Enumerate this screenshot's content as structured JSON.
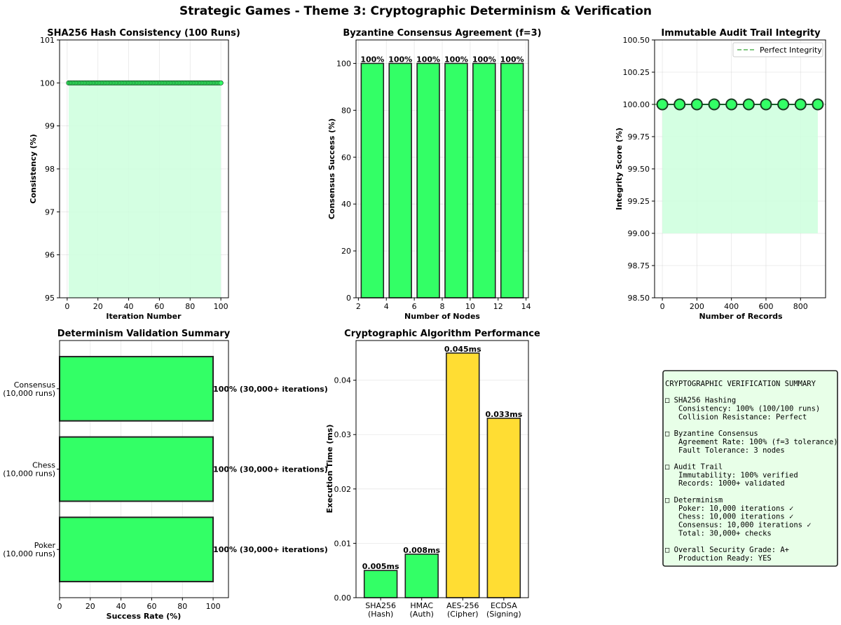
{
  "suptitle": "Strategic Games - Theme 3: Cryptographic Determinism & Verification",
  "colors": {
    "green": "#33ff66",
    "yellow": "#ffdd33",
    "green_fill": "#ccffdd",
    "edge": "#222222",
    "box_bg": "#e8ffe8"
  },
  "chart_data": [
    {
      "id": "sha",
      "type": "line",
      "title": "SHA256 Hash Consistency (100 Runs)",
      "xlabel": "Iteration Number",
      "ylabel": "Consistency (%)",
      "xlim": [
        -4.95,
        104.95
      ],
      "ylim": [
        95,
        101
      ],
      "xticks": [
        0,
        20,
        40,
        60,
        80,
        100
      ],
      "yticks": [
        95,
        96,
        97,
        98,
        99,
        100,
        101
      ],
      "x_start": 1,
      "x_end": 100,
      "value": 100,
      "fill_to": 95
    },
    {
      "id": "byz",
      "type": "bar",
      "title": "Byzantine Consensus Agreement (f=3)",
      "xlabel": "Number of Nodes",
      "ylabel": "Consensus Success (%)",
      "x": [
        3,
        5,
        7,
        9,
        11,
        13
      ],
      "values": [
        100,
        100,
        100,
        100,
        100,
        100
      ],
      "labels": [
        "100%",
        "100%",
        "100%",
        "100%",
        "100%",
        "100%"
      ],
      "bar_width": 1.6,
      "xlim": [
        1.83,
        14.17
      ],
      "ylim": [
        0,
        110
      ],
      "xticks": [
        2,
        4,
        6,
        8,
        10,
        12,
        14
      ],
      "yticks": [
        0,
        20,
        40,
        60,
        80,
        100
      ]
    },
    {
      "id": "audit",
      "type": "line",
      "title": "Immutable Audit Trail Integrity",
      "xlabel": "Number of Records",
      "ylabel": "Integrity Score (%)",
      "x": [
        0,
        100,
        200,
        300,
        400,
        500,
        600,
        700,
        800,
        900
      ],
      "values": [
        100,
        100,
        100,
        100,
        100,
        100,
        100,
        100,
        100,
        100
      ],
      "fill_to": 99,
      "reference": 100,
      "legend": "Perfect Integrity",
      "legend_loc": "top-right",
      "xlim": [
        -45,
        945
      ],
      "ylim": [
        98.5,
        100.5
      ],
      "xticks": [
        0,
        200,
        400,
        600,
        800
      ],
      "yticks": [
        98.5,
        98.75,
        99.0,
        99.25,
        99.5,
        99.75,
        100.0,
        100.25,
        100.5
      ],
      "ytick_labels": [
        "98.50",
        "98.75",
        "99.00",
        "99.25",
        "99.50",
        "99.75",
        "100.00",
        "100.25",
        "100.50"
      ]
    },
    {
      "id": "det",
      "type": "barh",
      "title": "Determinism Validation Summary",
      "xlabel": "Success Rate (%)",
      "categories": [
        [
          "Consensus",
          "(10,000 runs)"
        ],
        [
          "Chess",
          "(10,000 runs)"
        ],
        [
          "Poker",
          "(10,000 runs)"
        ]
      ],
      "values": [
        100,
        100,
        100
      ],
      "labels": [
        "100% (30,000+ iterations)",
        "100% (30,000+ iterations)",
        "100% (30,000+ iterations)"
      ],
      "xlim": [
        0,
        110
      ],
      "xticks": [
        0,
        20,
        40,
        60,
        80,
        100
      ]
    },
    {
      "id": "perf",
      "type": "bar",
      "title": "Cryptographic Algorithm Performance",
      "ylabel": "Execution Time (ms)",
      "categories": [
        [
          "SHA256",
          "(Hash)"
        ],
        [
          "HMAC",
          "(Auth)"
        ],
        [
          "AES-256",
          "(Cipher)"
        ],
        [
          "ECDSA",
          "(Signing)"
        ]
      ],
      "values": [
        0.005,
        0.008,
        0.045,
        0.033
      ],
      "labels": [
        "0.005ms",
        "0.008ms",
        "0.045ms",
        "0.033ms"
      ],
      "bar_colors": [
        "#33ff66",
        "#33ff66",
        "#ffdd33",
        "#ffdd33"
      ],
      "ylim": [
        0,
        0.0473
      ],
      "yticks": [
        0,
        0.01,
        0.02,
        0.03,
        0.04
      ],
      "ytick_labels": [
        "0.00",
        "0.01",
        "0.02",
        "0.03",
        "0.04"
      ]
    }
  ],
  "summary_box": {
    "lines": [
      "CRYPTOGRAPHIC VERIFICATION SUMMARY",
      "",
      "□ SHA256 Hashing",
      "   Consistency: 100% (100/100 runs)",
      "   Collision Resistance: Perfect",
      "",
      "□ Byzantine Consensus",
      "   Agreement Rate: 100% (f=3 tolerance)",
      "   Fault Tolerance: 3 nodes",
      "",
      "□ Audit Trail",
      "   Immutability: 100% verified",
      "   Records: 1000+ validated",
      "",
      "□ Determinism",
      "   Poker: 10,000 iterations ✓",
      "   Chess: 10,000 iterations ✓",
      "   Consensus: 10,000 iterations ✓",
      "   Total: 30,000+ checks",
      "",
      "□ Overall Security Grade: A+",
      "   Production Ready: YES"
    ]
  }
}
